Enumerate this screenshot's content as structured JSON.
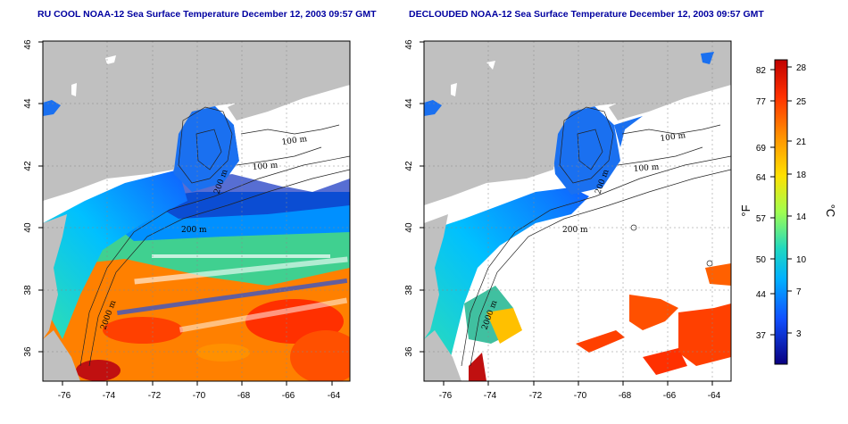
{
  "left_panel": {
    "title": "RU COOL NOAA-12 Sea Surface Temperature December 12, 2003 09:57 GMT",
    "lat_ticks": [
      "36",
      "38",
      "40",
      "42",
      "44",
      "46"
    ],
    "lon_ticks": [
      "-76",
      "-74",
      "-72",
      "-70",
      "-68",
      "-66",
      "-64"
    ],
    "contour_labels": [
      "100 m",
      "100 m",
      "200 m",
      "200 m",
      "2000 m"
    ]
  },
  "right_panel": {
    "title": "DECLOUDED NOAA-12 Sea Surface Temperature December 12, 2003 09:57 GMT",
    "lat_ticks": [
      "36",
      "38",
      "40",
      "42",
      "44",
      "46"
    ],
    "lon_ticks": [
      "-76",
      "-74",
      "-72",
      "-70",
      "-68",
      "-66",
      "-64"
    ],
    "contour_labels": [
      "100 m",
      "100 m",
      "200 m",
      "200 m",
      "2000 m"
    ]
  },
  "colorbar": {
    "f_label": "°F",
    "c_label": "°C",
    "f_ticks": [
      "82",
      "77",
      "69",
      "64",
      "57",
      "50",
      "44",
      "37"
    ],
    "c_ticks": [
      "28",
      "25",
      "21",
      "18",
      "14",
      "10",
      "7",
      "3"
    ]
  },
  "colors": {
    "land": "#c0c0c0",
    "cloud": "#ffffff",
    "gradient": [
      "#d00000",
      "#ff4000",
      "#ff9a00",
      "#ffe000",
      "#b8ff40",
      "#30e0a0",
      "#00c0ff",
      "#1060ff",
      "#1020d0",
      "#0a0090"
    ]
  }
}
